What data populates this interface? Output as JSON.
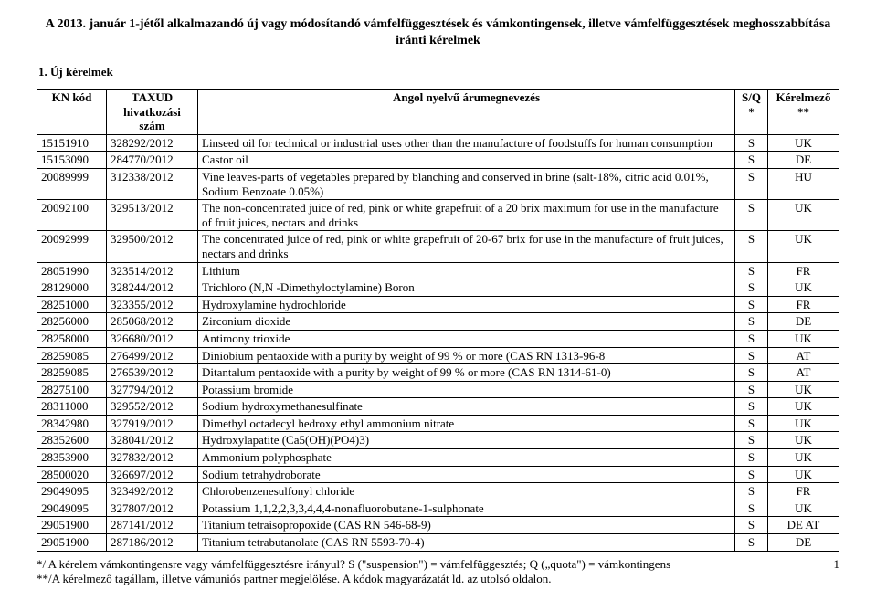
{
  "title": "A 2013. január 1-jétől alkalmazandó új vagy módosítandó vámfelfüggesztések és vámkontingensek, illetve vámfelfüggesztések meghosszabbítása iránti kérelmek",
  "section_heading": "1. Új kérelmek",
  "columns": {
    "kn": "KN kód",
    "taxud": "TAXUD hivatkozási szám",
    "desc": "Angol nyelvű árumegnevezés",
    "sq": "S/Q *",
    "ker": "Kérelmező **"
  },
  "rows": [
    {
      "kn": "15151910",
      "tx": "328292/2012",
      "desc": "Linseed oil for technical or industrial uses other than the manufacture of foodstuffs for human consumption",
      "sq": "S",
      "ker": "UK"
    },
    {
      "kn": "15153090",
      "tx": "284770/2012",
      "desc": " Castor oil",
      "sq": "S",
      "ker": "DE"
    },
    {
      "kn": "20089999",
      "tx": "312338/2012",
      "desc": "Vine leaves-parts of vegetables prepared by blanching and conserved in brine (salt-18%, citric acid 0.01%, Sodium Benzoate 0.05%)",
      "sq": "S",
      "ker": "HU"
    },
    {
      "kn": "20092100",
      "tx": "329513/2012",
      "desc": "The non-concentrated juice of red, pink or white grapefruit of a 20 brix maximum for use in the manufacture of fruit juices, nectars and drinks",
      "sq": "S",
      "ker": "UK"
    },
    {
      "kn": "20092999",
      "tx": "329500/2012",
      "desc": "The concentrated juice of red, pink or white grapefruit of 20-67 brix for use in the manufacture of fruit juices, nectars and drinks",
      "sq": "S",
      "ker": "UK"
    },
    {
      "kn": "28051990",
      "tx": "323514/2012",
      "desc": "Lithium",
      "sq": "S",
      "ker": "FR"
    },
    {
      "kn": "28129000",
      "tx": "328244/2012",
      "desc": "Trichloro (N,N -Dimethyloctylamine) Boron",
      "sq": "S",
      "ker": "UK"
    },
    {
      "kn": "28251000",
      "tx": "323355/2012",
      "desc": " Hydroxylamine hydrochloride",
      "sq": "S",
      "ker": "FR"
    },
    {
      "kn": "28256000",
      "tx": "285068/2012",
      "desc": "Zirconium dioxide",
      "sq": "S",
      "ker": "DE"
    },
    {
      "kn": "28258000",
      "tx": "326680/2012",
      "desc": "Antimony trioxide",
      "sq": "S",
      "ker": "UK"
    },
    {
      "kn": "28259085",
      "tx": "276499/2012",
      "desc": "Diniobium pentaoxide with a purity by weight of 99 % or more (CAS RN 1313-96-8",
      "sq": "S",
      "ker": "AT"
    },
    {
      "kn": "28259085",
      "tx": "276539/2012",
      "desc": "Ditantalum pentaoxide with a purity by weight of 99 % or more (CAS RN 1314-61-0)",
      "sq": "S",
      "ker": "AT"
    },
    {
      "kn": "28275100",
      "tx": "327794/2012",
      "desc": "Potassium bromide",
      "sq": "S",
      "ker": "UK"
    },
    {
      "kn": "28311000",
      "tx": "329552/2012",
      "desc": "Sodium hydroxymethanesulfinate",
      "sq": "S",
      "ker": "UK"
    },
    {
      "kn": "28342980",
      "tx": "327919/2012",
      "desc": "Dimethyl octadecyl hedroxy ethyl ammonium nitrate",
      "sq": "S",
      "ker": "UK"
    },
    {
      "kn": "28352600",
      "tx": "328041/2012",
      "desc": "Hydroxylapatite (Ca5(OH)(PO4)3)",
      "sq": "S",
      "ker": "UK"
    },
    {
      "kn": "28353900",
      "tx": "327832/2012",
      "desc": "Ammonium polyphosphate",
      "sq": "S",
      "ker": "UK"
    },
    {
      "kn": "28500020",
      "tx": "326697/2012",
      "desc": "Sodium tetrahydroborate",
      "sq": "S",
      "ker": "UK"
    },
    {
      "kn": "29049095",
      "tx": "323492/2012",
      "desc": "Chlorobenzenesulfonyl chloride",
      "sq": "S",
      "ker": "FR"
    },
    {
      "kn": "29049095",
      "tx": "327807/2012",
      "desc": "Potassium 1,1,2,2,3,3,4,4,4-nonafluorobutane-1-sulphonate",
      "sq": "S",
      "ker": "UK"
    },
    {
      "kn": "29051900",
      "tx": "287141/2012",
      "desc": " Titanium tetraisopropoxide (CAS RN 546-68-9)",
      "sq": "S",
      "ker": "DE AT"
    },
    {
      "kn": "29051900",
      "tx": "287186/2012",
      "desc": " Titanium tetrabutanolate (CAS RN 5593-70-4)",
      "sq": "S",
      "ker": "DE"
    }
  ],
  "footnotes": {
    "line1": "*/ A kérelem vámkontingensre vagy vámfelfüggesztésre irányul?  S (\"suspension\") = vámfelfüggesztés; Q („quota\") = vámkontingens",
    "line2": "**/A kérelmező tagállam, illetve vámuniós partner megjelölése. A kódok magyarázatát ld. az utolsó oldalon.",
    "pagenum": "1"
  }
}
